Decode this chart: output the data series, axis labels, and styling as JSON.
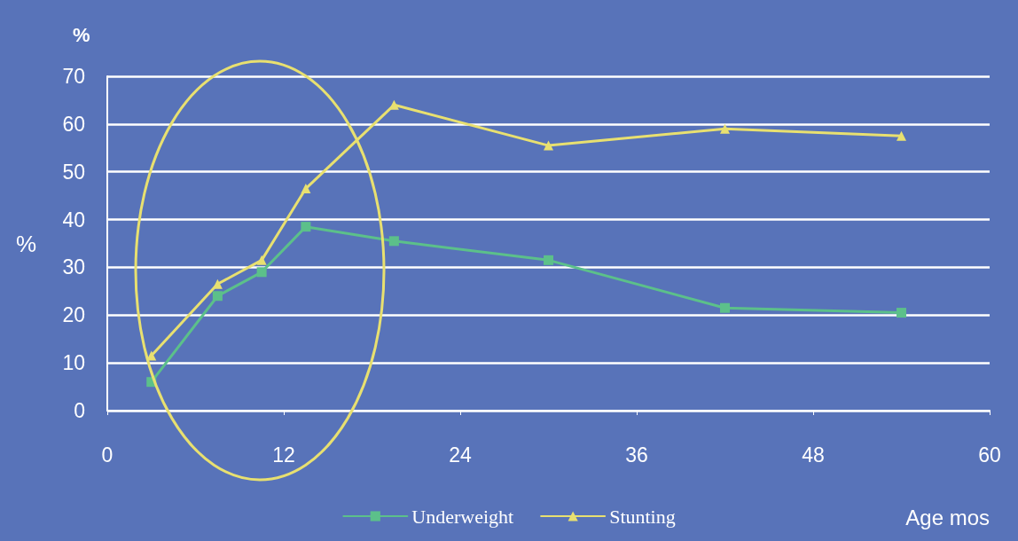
{
  "chart_data": {
    "type": "line",
    "xlabel": "Age mos",
    "ylabel": "%",
    "annotations": [
      "%"
    ],
    "xlim": [
      0,
      60
    ],
    "xticks": [
      0,
      12,
      24,
      36,
      48,
      60
    ],
    "ylim": [
      0,
      70
    ],
    "yticks": [
      0,
      10,
      20,
      30,
      40,
      50,
      60,
      70
    ],
    "grid": "y",
    "legend": "bottom",
    "series": [
      {
        "name": "Underweight",
        "color": "#5cc08a",
        "marker": "square",
        "x": [
          3,
          7.5,
          10.5,
          13.5,
          19.5,
          30,
          42,
          54
        ],
        "values": [
          6,
          24,
          29,
          38.5,
          35.5,
          31.5,
          21.5,
          20.5
        ]
      },
      {
        "name": "Stunting",
        "color": "#e8e070",
        "marker": "triangle",
        "x": [
          3,
          7.5,
          10.5,
          13.5,
          19.5,
          30,
          42,
          54
        ],
        "values": [
          11.5,
          26.5,
          31.5,
          46.5,
          64,
          55.5,
          59,
          57.5
        ]
      }
    ]
  }
}
